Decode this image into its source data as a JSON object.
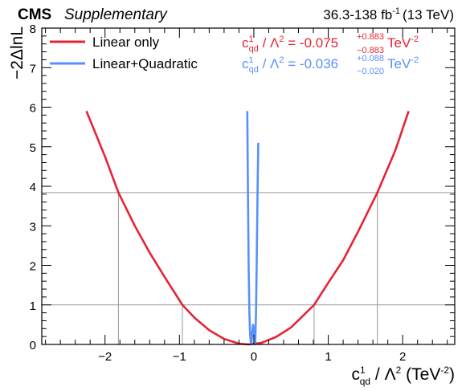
{
  "header": {
    "experiment": "CMS",
    "label": "Supplementary",
    "lumi_prefix": "36.3-138 fb",
    "lumi_exp": "-1",
    "lumi_suffix": "(13 TeV)"
  },
  "axes": {
    "ylabel": "−2ΔlnL",
    "xlabel_c": "c",
    "xlabel_sup": "1",
    "xlabel_sub": "qd",
    "xlabel_mid": " / Λ",
    "xlabel_pow": "2",
    "xlabel_unit": " (TeV",
    "xlabel_unit_pow": "-2",
    "xlabel_close": ")"
  },
  "legend": [
    {
      "name": "Linear only",
      "color": "#e42536"
    },
    {
      "name": "Linear+Quadratic",
      "color": "#5790fc"
    }
  ],
  "results": [
    {
      "prefix_c": "c",
      "sup": "1",
      "sub": "qd",
      "mid": " / Λ",
      "pow": "2",
      "value": " = -0.075",
      "err_up": "+0.883",
      "err_dn": "−0.883",
      "unit": "TeV",
      "unit_pow": "-2",
      "color": "#e42536"
    },
    {
      "prefix_c": "c",
      "sup": "1",
      "sub": "qd",
      "mid": " / Λ",
      "pow": "2",
      "value": " = -0.036",
      "err_up": "+0.088",
      "err_dn": "−0.020",
      "unit": "TeV",
      "unit_pow": "-2",
      "color": "#5790fc"
    }
  ],
  "chart_data": {
    "type": "line",
    "xlim": [
      -2.85,
      2.7
    ],
    "ylim": [
      0,
      8
    ],
    "x_ticks": [
      -2,
      -1,
      0,
      1,
      2
    ],
    "x_tick_labels": [
      "−2",
      "−1",
      "0",
      "1",
      "2"
    ],
    "y_ticks": [
      0,
      1,
      2,
      3,
      4,
      5,
      6,
      7,
      8
    ],
    "y_tick_labels": [
      "0",
      "1",
      "2",
      "3",
      "4",
      "5",
      "6",
      "7",
      "8"
    ],
    "reference_lines": [
      1,
      3.84
    ],
    "crossings": [
      {
        "x": -1.82,
        "y": 3.84
      },
      {
        "x": -0.96,
        "y": 1
      },
      {
        "x": 0.81,
        "y": 1
      },
      {
        "x": 1.66,
        "y": 3.84
      }
    ],
    "series": [
      {
        "name": "Linear only",
        "color": "#e42536",
        "x": [
          -2.25,
          -2.0,
          -1.82,
          -1.6,
          -1.4,
          -1.2,
          -0.96,
          -0.8,
          -0.6,
          -0.4,
          -0.2,
          -0.075,
          0.1,
          0.3,
          0.5,
          0.81,
          1.0,
          1.2,
          1.4,
          1.66,
          1.9,
          2.08
        ],
        "y": [
          5.9,
          4.75,
          3.84,
          3.0,
          2.32,
          1.71,
          1.0,
          0.68,
          0.36,
          0.14,
          0.02,
          0.0,
          0.04,
          0.19,
          0.43,
          1.0,
          1.56,
          2.13,
          2.85,
          3.84,
          4.9,
          5.9
        ]
      },
      {
        "name": "Linear+Quadratic",
        "color": "#5790fc",
        "x": [
          -0.088,
          -0.08,
          -0.07,
          -0.06,
          -0.05,
          -0.04,
          -0.036,
          -0.03,
          -0.02,
          -0.01,
          0.0,
          0.01,
          0.015,
          0.02,
          0.03,
          0.04,
          0.05,
          0.06
        ],
        "y": [
          5.9,
          4.0,
          2.0,
          0.8,
          0.25,
          0.03,
          0.0,
          0.08,
          0.35,
          0.5,
          0.38,
          0.08,
          0.0,
          0.12,
          0.9,
          2.3,
          3.9,
          5.1
        ]
      }
    ]
  }
}
